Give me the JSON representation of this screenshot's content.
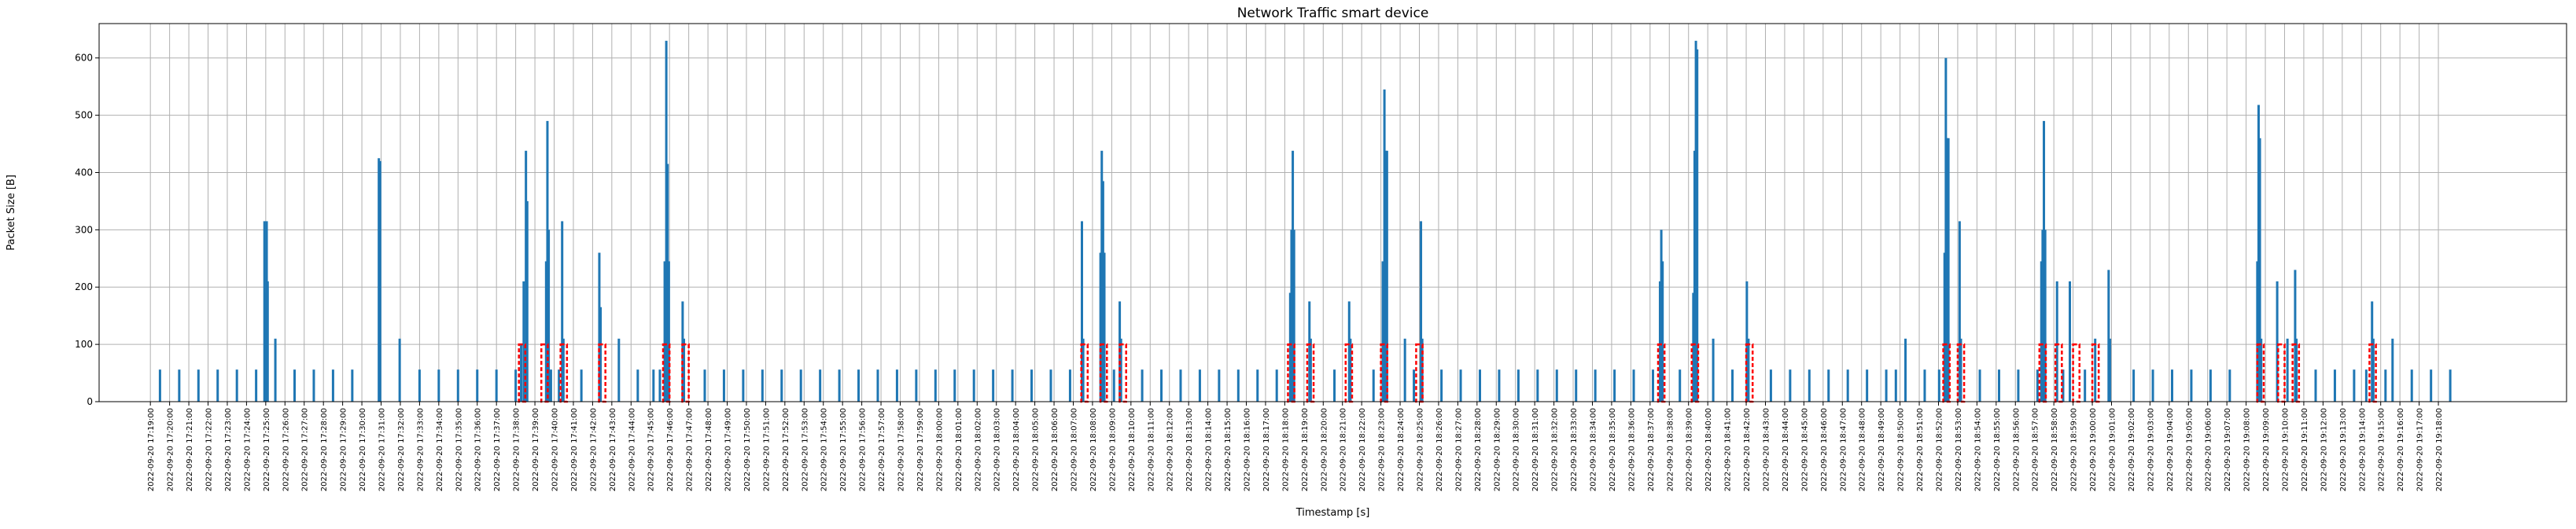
{
  "chart_data": {
    "type": "bar",
    "title": "Network Traffic smart device",
    "xlabel": "Timestamp [s]",
    "ylabel": "Packet Size [B]",
    "ylim": [
      0,
      660
    ],
    "x_range": [
      "2022-09-20 17:16:20",
      "2022-09-20 19:24:40"
    ],
    "grid": true,
    "colors": {
      "bars": "#1f77b4",
      "anomaly": "#ff0000",
      "grid": "#b0b0b0"
    },
    "y_ticks": [
      0,
      100,
      200,
      300,
      400,
      500,
      600
    ],
    "x_ticks": [
      "2022-09-20 17:19:00",
      "2022-09-20 17:20:00",
      "2022-09-20 17:21:00",
      "2022-09-20 17:22:00",
      "2022-09-20 17:23:00",
      "2022-09-20 17:24:00",
      "2022-09-20 17:25:00",
      "2022-09-20 17:26:00",
      "2022-09-20 17:27:00",
      "2022-09-20 17:28:00",
      "2022-09-20 17:29:00",
      "2022-09-20 17:30:00",
      "2022-09-20 17:31:00",
      "2022-09-20 17:32:00",
      "2022-09-20 17:33:00",
      "2022-09-20 17:34:00",
      "2022-09-20 17:35:00",
      "2022-09-20 17:36:00",
      "2022-09-20 17:37:00",
      "2022-09-20 17:38:00",
      "2022-09-20 17:39:00",
      "2022-09-20 17:40:00",
      "2022-09-20 17:41:00",
      "2022-09-20 17:42:00",
      "2022-09-20 17:43:00",
      "2022-09-20 17:44:00",
      "2022-09-20 17:45:00",
      "2022-09-20 17:46:00",
      "2022-09-20 17:47:00",
      "2022-09-20 17:48:00",
      "2022-09-20 17:49:00",
      "2022-09-20 17:50:00",
      "2022-09-20 17:51:00",
      "2022-09-20 17:52:00",
      "2022-09-20 17:53:00",
      "2022-09-20 17:54:00",
      "2022-09-20 17:55:00",
      "2022-09-20 17:56:00",
      "2022-09-20 17:57:00",
      "2022-09-20 17:58:00",
      "2022-09-20 17:59:00",
      "2022-09-20 18:00:00",
      "2022-09-20 18:01:00",
      "2022-09-20 18:02:00",
      "2022-09-20 18:03:00",
      "2022-09-20 18:04:00",
      "2022-09-20 18:05:00",
      "2022-09-20 18:06:00",
      "2022-09-20 18:07:00",
      "2022-09-20 18:08:00",
      "2022-09-20 18:09:00",
      "2022-09-20 18:10:00",
      "2022-09-20 18:11:00",
      "2022-09-20 18:12:00",
      "2022-09-20 18:13:00",
      "2022-09-20 18:14:00",
      "2022-09-20 18:15:00",
      "2022-09-20 18:16:00",
      "2022-09-20 18:17:00",
      "2022-09-20 18:18:00",
      "2022-09-20 18:19:00",
      "2022-09-20 18:20:00",
      "2022-09-20 18:21:00",
      "2022-09-20 18:22:00",
      "2022-09-20 18:23:00",
      "2022-09-20 18:24:00",
      "2022-09-20 18:25:00",
      "2022-09-20 18:26:00",
      "2022-09-20 18:27:00",
      "2022-09-20 18:28:00",
      "2022-09-20 18:29:00",
      "2022-09-20 18:30:00",
      "2022-09-20 18:31:00",
      "2022-09-20 18:32:00",
      "2022-09-20 18:33:00",
      "2022-09-20 18:34:00",
      "2022-09-20 18:35:00",
      "2022-09-20 18:36:00",
      "2022-09-20 18:37:00",
      "2022-09-20 18:38:00",
      "2022-09-20 18:39:00",
      "2022-09-20 18:40:00",
      "2022-09-20 18:41:00",
      "2022-09-20 18:42:00",
      "2022-09-20 18:43:00",
      "2022-09-20 18:44:00",
      "2022-09-20 18:45:00",
      "2022-09-20 18:46:00",
      "2022-09-20 18:47:00",
      "2022-09-20 18:48:00",
      "2022-09-20 18:49:00",
      "2022-09-20 18:50:00",
      "2022-09-20 18:51:00",
      "2022-09-20 18:52:00",
      "2022-09-20 18:53:00",
      "2022-09-20 18:54:00",
      "2022-09-20 18:55:00",
      "2022-09-20 18:56:00",
      "2022-09-20 18:57:00",
      "2022-09-20 18:58:00",
      "2022-09-20 18:59:00",
      "2022-09-20 19:00:00",
      "2022-09-20 19:01:00",
      "2022-09-20 19:02:00",
      "2022-09-20 19:03:00",
      "2022-09-20 19:04:00",
      "2022-09-20 19:05:00",
      "2022-09-20 19:06:00",
      "2022-09-20 19:07:00",
      "2022-09-20 19:08:00",
      "2022-09-20 19:09:00",
      "2022-09-20 19:10:00",
      "2022-09-20 19:11:00",
      "2022-09-20 19:12:00",
      "2022-09-20 19:13:00",
      "2022-09-20 19:14:00",
      "2022-09-20 19:15:00",
      "2022-09-20 19:16:00",
      "2022-09-20 19:17:00",
      "2022-09-20 19:18:00"
    ],
    "points": [
      [
        "2022-09-20 17:19:30",
        56
      ],
      [
        "2022-09-20 17:20:30",
        56
      ],
      [
        "2022-09-20 17:21:30",
        56
      ],
      [
        "2022-09-20 17:22:30",
        56
      ],
      [
        "2022-09-20 17:23:30",
        56
      ],
      [
        "2022-09-20 17:24:30",
        56
      ],
      [
        "2022-09-20 17:24:56",
        315
      ],
      [
        "2022-09-20 17:25:00",
        190
      ],
      [
        "2022-09-20 17:25:03",
        315
      ],
      [
        "2022-09-20 17:25:06",
        210
      ],
      [
        "2022-09-20 17:25:30",
        110
      ],
      [
        "2022-09-20 17:26:30",
        56
      ],
      [
        "2022-09-20 17:27:30",
        56
      ],
      [
        "2022-09-20 17:28:30",
        56
      ],
      [
        "2022-09-20 17:29:30",
        56
      ],
      [
        "2022-09-20 17:30:53",
        425
      ],
      [
        "2022-09-20 17:30:57",
        420
      ],
      [
        "2022-09-20 17:31:58",
        110
      ],
      [
        "2022-09-20 17:33:00",
        56
      ],
      [
        "2022-09-20 17:34:00",
        56
      ],
      [
        "2022-09-20 17:35:00",
        56
      ],
      [
        "2022-09-20 17:36:00",
        56
      ],
      [
        "2022-09-20 17:37:00",
        56
      ],
      [
        "2022-09-20 17:38:00",
        56
      ],
      [
        "2022-09-20 17:38:17",
        100
      ],
      [
        "2022-09-20 17:38:25",
        210
      ],
      [
        "2022-09-20 17:38:32",
        438
      ],
      [
        "2022-09-20 17:38:36",
        350
      ],
      [
        "2022-09-20 17:39:35",
        245
      ],
      [
        "2022-09-20 17:39:39",
        490
      ],
      [
        "2022-09-20 17:39:43",
        300
      ],
      [
        "2022-09-20 17:39:50",
        56
      ],
      [
        "2022-09-20 17:40:15",
        56
      ],
      [
        "2022-09-20 17:40:25",
        315
      ],
      [
        "2022-09-20 17:40:29",
        110
      ],
      [
        "2022-09-20 17:41:25",
        56
      ],
      [
        "2022-09-20 17:42:21",
        260
      ],
      [
        "2022-09-20 17:42:25",
        165
      ],
      [
        "2022-09-20 17:43:22",
        110
      ],
      [
        "2022-09-20 17:44:21",
        56
      ],
      [
        "2022-09-20 17:45:10",
        56
      ],
      [
        "2022-09-20 17:45:30",
        56
      ],
      [
        "2022-09-20 17:45:45",
        245
      ],
      [
        "2022-09-20 17:45:50",
        630
      ],
      [
        "2022-09-20 17:45:54",
        415
      ],
      [
        "2022-09-20 17:45:58",
        245
      ],
      [
        "2022-09-20 17:46:41",
        175
      ],
      [
        "2022-09-20 17:46:45",
        110
      ],
      [
        "2022-09-20 17:47:50",
        56
      ],
      [
        "2022-09-20 17:48:50",
        56
      ],
      [
        "2022-09-20 17:49:50",
        56
      ],
      [
        "2022-09-20 17:50:50",
        56
      ],
      [
        "2022-09-20 17:51:50",
        56
      ],
      [
        "2022-09-20 17:52:50",
        56
      ],
      [
        "2022-09-20 17:53:50",
        56
      ],
      [
        "2022-09-20 17:54:50",
        56
      ],
      [
        "2022-09-20 17:55:50",
        56
      ],
      [
        "2022-09-20 17:56:50",
        56
      ],
      [
        "2022-09-20 17:57:50",
        56
      ],
      [
        "2022-09-20 17:58:50",
        56
      ],
      [
        "2022-09-20 17:59:50",
        56
      ],
      [
        "2022-09-20 18:00:50",
        56
      ],
      [
        "2022-09-20 18:01:50",
        56
      ],
      [
        "2022-09-20 18:02:50",
        56
      ],
      [
        "2022-09-20 18:03:50",
        56
      ],
      [
        "2022-09-20 18:04:50",
        56
      ],
      [
        "2022-09-20 18:05:50",
        56
      ],
      [
        "2022-09-20 18:06:50",
        56
      ],
      [
        "2022-09-20 18:07:27",
        315
      ],
      [
        "2022-09-20 18:07:31",
        110
      ],
      [
        "2022-09-20 18:08:25",
        260
      ],
      [
        "2022-09-20 18:08:29",
        438
      ],
      [
        "2022-09-20 18:08:33",
        385
      ],
      [
        "2022-09-20 18:08:37",
        260
      ],
      [
        "2022-09-20 18:09:07",
        56
      ],
      [
        "2022-09-20 18:09:25",
        175
      ],
      [
        "2022-09-20 18:09:29",
        110
      ],
      [
        "2022-09-20 18:10:35",
        56
      ],
      [
        "2022-09-20 18:11:35",
        56
      ],
      [
        "2022-09-20 18:12:35",
        56
      ],
      [
        "2022-09-20 18:13:35",
        56
      ],
      [
        "2022-09-20 18:14:35",
        56
      ],
      [
        "2022-09-20 18:15:35",
        56
      ],
      [
        "2022-09-20 18:16:35",
        56
      ],
      [
        "2022-09-20 18:17:35",
        56
      ],
      [
        "2022-09-20 18:18:17",
        190
      ],
      [
        "2022-09-20 18:18:21",
        300
      ],
      [
        "2022-09-20 18:18:25",
        438
      ],
      [
        "2022-09-20 18:18:29",
        300
      ],
      [
        "2022-09-20 18:19:17",
        175
      ],
      [
        "2022-09-20 18:19:21",
        110
      ],
      [
        "2022-09-20 18:20:35",
        56
      ],
      [
        "2022-09-20 18:21:21",
        175
      ],
      [
        "2022-09-20 18:21:25",
        110
      ],
      [
        "2022-09-20 18:22:37",
        56
      ],
      [
        "2022-09-20 18:23:06",
        245
      ],
      [
        "2022-09-20 18:23:11",
        545
      ],
      [
        "2022-09-20 18:23:15",
        438
      ],
      [
        "2022-09-20 18:23:19",
        438
      ],
      [
        "2022-09-20 18:24:15",
        110
      ],
      [
        "2022-09-20 18:24:43",
        56
      ],
      [
        "2022-09-20 18:25:05",
        315
      ],
      [
        "2022-09-20 18:25:09",
        110
      ],
      [
        "2022-09-20 18:26:09",
        56
      ],
      [
        "2022-09-20 18:27:09",
        56
      ],
      [
        "2022-09-20 18:28:09",
        56
      ],
      [
        "2022-09-20 18:29:09",
        56
      ],
      [
        "2022-09-20 18:30:09",
        56
      ],
      [
        "2022-09-20 18:31:09",
        56
      ],
      [
        "2022-09-20 18:32:09",
        56
      ],
      [
        "2022-09-20 18:33:09",
        56
      ],
      [
        "2022-09-20 18:34:09",
        56
      ],
      [
        "2022-09-20 18:35:09",
        56
      ],
      [
        "2022-09-20 18:36:09",
        56
      ],
      [
        "2022-09-20 18:37:09",
        56
      ],
      [
        "2022-09-20 18:37:31",
        210
      ],
      [
        "2022-09-20 18:37:35",
        300
      ],
      [
        "2022-09-20 18:37:39",
        245
      ],
      [
        "2022-09-20 18:38:33",
        56
      ],
      [
        "2022-09-20 18:39:15",
        190
      ],
      [
        "2022-09-20 18:39:19",
        438
      ],
      [
        "2022-09-20 18:39:23",
        630
      ],
      [
        "2022-09-20 18:39:27",
        615
      ],
      [
        "2022-09-20 18:40:17",
        110
      ],
      [
        "2022-09-20 18:41:17",
        56
      ],
      [
        "2022-09-20 18:42:02",
        210
      ],
      [
        "2022-09-20 18:42:07",
        110
      ],
      [
        "2022-09-20 18:43:17",
        56
      ],
      [
        "2022-09-20 18:44:17",
        56
      ],
      [
        "2022-09-20 18:45:17",
        56
      ],
      [
        "2022-09-20 18:46:17",
        56
      ],
      [
        "2022-09-20 18:47:17",
        56
      ],
      [
        "2022-09-20 18:48:17",
        56
      ],
      [
        "2022-09-20 18:49:17",
        56
      ],
      [
        "2022-09-20 18:49:47",
        56
      ],
      [
        "2022-09-20 18:50:17",
        110
      ],
      [
        "2022-09-20 18:51:17",
        56
      ],
      [
        "2022-09-20 18:52:02",
        56
      ],
      [
        "2022-09-20 18:52:19",
        260
      ],
      [
        "2022-09-20 18:52:23",
        600
      ],
      [
        "2022-09-20 18:52:27",
        460
      ],
      [
        "2022-09-20 18:52:31",
        460
      ],
      [
        "2022-09-20 18:53:06",
        315
      ],
      [
        "2022-09-20 18:53:10",
        110
      ],
      [
        "2022-09-20 18:54:09",
        56
      ],
      [
        "2022-09-20 18:55:09",
        56
      ],
      [
        "2022-09-20 18:56:09",
        56
      ],
      [
        "2022-09-20 18:57:09",
        56
      ],
      [
        "2022-09-20 18:57:21",
        245
      ],
      [
        "2022-09-20 18:57:25",
        300
      ],
      [
        "2022-09-20 18:57:29",
        490
      ],
      [
        "2022-09-20 18:57:33",
        300
      ],
      [
        "2022-09-20 18:58:10",
        210
      ],
      [
        "2022-09-20 18:58:29",
        56
      ],
      [
        "2022-09-20 18:58:50",
        210
      ],
      [
        "2022-09-20 18:59:37",
        56
      ],
      [
        "2022-09-20 19:00:09",
        110
      ],
      [
        "2022-09-20 19:00:51",
        230
      ],
      [
        "2022-09-20 19:00:55",
        110
      ],
      [
        "2022-09-20 19:02:09",
        56
      ],
      [
        "2022-09-20 19:03:09",
        56
      ],
      [
        "2022-09-20 19:04:09",
        56
      ],
      [
        "2022-09-20 19:05:09",
        56
      ],
      [
        "2022-09-20 19:06:09",
        56
      ],
      [
        "2022-09-20 19:07:09",
        56
      ],
      [
        "2022-09-20 19:08:35",
        245
      ],
      [
        "2022-09-20 19:08:39",
        518
      ],
      [
        "2022-09-20 19:08:43",
        460
      ],
      [
        "2022-09-20 19:08:47",
        110
      ],
      [
        "2022-09-20 19:09:37",
        210
      ],
      [
        "2022-09-20 19:10:09",
        110
      ],
      [
        "2022-09-20 19:10:33",
        230
      ],
      [
        "2022-09-20 19:10:37",
        110
      ],
      [
        "2022-09-20 19:11:37",
        56
      ],
      [
        "2022-09-20 19:12:37",
        56
      ],
      [
        "2022-09-20 19:13:37",
        56
      ],
      [
        "2022-09-20 19:14:15",
        56
      ],
      [
        "2022-09-20 19:14:33",
        175
      ],
      [
        "2022-09-20 19:14:37",
        110
      ],
      [
        "2022-09-20 19:15:15",
        56
      ],
      [
        "2022-09-20 19:15:37",
        110
      ],
      [
        "2022-09-20 19:16:37",
        56
      ],
      [
        "2022-09-20 19:17:37",
        56
      ],
      [
        "2022-09-20 19:18:37",
        56
      ]
    ],
    "highlight_windows": [
      [
        "2022-09-20 17:38:10",
        "2022-09-20 17:38:30"
      ],
      [
        "2022-09-20 17:39:20",
        "2022-09-20 17:39:40"
      ],
      [
        "2022-09-20 17:40:20",
        "2022-09-20 17:40:40"
      ],
      [
        "2022-09-20 17:42:20",
        "2022-09-20 17:42:40"
      ],
      [
        "2022-09-20 17:45:40",
        "2022-09-20 17:46:00"
      ],
      [
        "2022-09-20 17:46:40",
        "2022-09-20 17:47:00"
      ],
      [
        "2022-09-20 18:07:25",
        "2022-09-20 18:07:45"
      ],
      [
        "2022-09-20 18:08:25",
        "2022-09-20 18:08:45"
      ],
      [
        "2022-09-20 18:09:25",
        "2022-09-20 18:09:45"
      ],
      [
        "2022-09-20 18:18:10",
        "2022-09-20 18:18:30"
      ],
      [
        "2022-09-20 18:19:10",
        "2022-09-20 18:19:30"
      ],
      [
        "2022-09-20 18:21:10",
        "2022-09-20 18:21:30"
      ],
      [
        "2022-09-20 18:23:00",
        "2022-09-20 18:23:20"
      ],
      [
        "2022-09-20 18:24:50",
        "2022-09-20 18:25:10"
      ],
      [
        "2022-09-20 18:37:25",
        "2022-09-20 18:37:45"
      ],
      [
        "2022-09-20 18:39:10",
        "2022-09-20 18:39:30"
      ],
      [
        "2022-09-20 18:42:00",
        "2022-09-20 18:42:20"
      ],
      [
        "2022-09-20 18:52:15",
        "2022-09-20 18:52:35"
      ],
      [
        "2022-09-20 18:53:00",
        "2022-09-20 18:53:20"
      ],
      [
        "2022-09-20 18:57:15",
        "2022-09-20 18:57:35"
      ],
      [
        "2022-09-20 18:58:05",
        "2022-09-20 18:58:25"
      ],
      [
        "2022-09-20 18:59:00",
        "2022-09-20 18:59:20"
      ],
      [
        "2022-09-20 19:00:00",
        "2022-09-20 19:00:20"
      ],
      [
        "2022-09-20 19:08:35",
        "2022-09-20 19:08:55"
      ],
      [
        "2022-09-20 19:09:40",
        "2022-09-20 19:10:00"
      ],
      [
        "2022-09-20 19:10:25",
        "2022-09-20 19:10:45"
      ],
      [
        "2022-09-20 19:14:25",
        "2022-09-20 19:14:45"
      ]
    ]
  }
}
